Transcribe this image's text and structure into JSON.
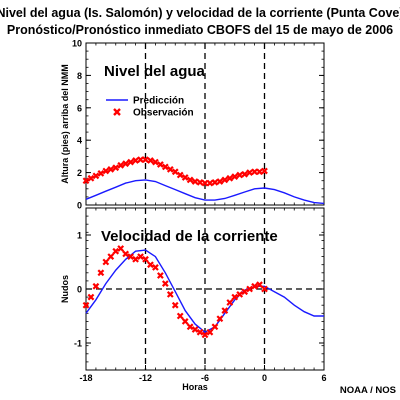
{
  "title_line1": "Nivel del agua (Is. Salomón) y velocidad de la corriente (Punta Cove)",
  "title_line2": "Pronóstico/Pronóstico inmediato CBOFS del 15 de mayo de 2006",
  "credit": "NOAA / NOS",
  "chart_data": [
    {
      "type": "line",
      "title": "Nivel del agua",
      "ylabel": "Altura (pies) arriba del NMM",
      "xlim": [
        -18,
        6
      ],
      "ylim": [
        0,
        10
      ],
      "yticks": [
        0,
        2,
        4,
        6,
        8,
        10
      ],
      "grid": false,
      "vlines": [
        -12,
        -6,
        0
      ],
      "legend_position": "upper-left",
      "series": [
        {
          "name": "Predicción",
          "style": "line",
          "color": "#1a1aff",
          "x": [
            -18,
            -17,
            -16,
            -15,
            -14,
            -13,
            -12,
            -11,
            -10,
            -9,
            -8,
            -7,
            -6,
            -5,
            -4,
            -3,
            -2,
            -1,
            0,
            1,
            2,
            3,
            4,
            5,
            6
          ],
          "y": [
            0.35,
            0.6,
            0.85,
            1.1,
            1.35,
            1.5,
            1.55,
            1.45,
            1.2,
            0.95,
            0.7,
            0.45,
            0.3,
            0.3,
            0.4,
            0.6,
            0.8,
            1.0,
            1.05,
            0.95,
            0.75,
            0.5,
            0.3,
            0.15,
            0.1
          ]
        },
        {
          "name": "Observación",
          "style": "marker",
          "color": "#ff0000",
          "x": [
            -18,
            -17.5,
            -17,
            -16.5,
            -16,
            -15.5,
            -15,
            -14.5,
            -14,
            -13.5,
            -13,
            -12.5,
            -12,
            -11.5,
            -11,
            -10.5,
            -10,
            -9.5,
            -9,
            -8.5,
            -8,
            -7.5,
            -7,
            -6.5,
            -6,
            -5.5,
            -5,
            -4.5,
            -4,
            -3.5,
            -3,
            -2.5,
            -2,
            -1.5,
            -1,
            -0.5,
            0
          ],
          "y": [
            1.5,
            1.65,
            1.8,
            1.95,
            2.1,
            2.2,
            2.3,
            2.45,
            2.55,
            2.65,
            2.75,
            2.8,
            2.8,
            2.75,
            2.65,
            2.5,
            2.35,
            2.2,
            2.05,
            1.85,
            1.7,
            1.55,
            1.45,
            1.4,
            1.35,
            1.35,
            1.4,
            1.45,
            1.55,
            1.65,
            1.75,
            1.85,
            1.9,
            2.0,
            2.05,
            2.05,
            2.1
          ]
        }
      ]
    },
    {
      "type": "line",
      "title": "Velocidad de la corriente",
      "ylabel": "Nudos",
      "xlabel": "Horas",
      "xlim": [
        -18,
        6
      ],
      "ylim": [
        -1.5,
        1.5
      ],
      "xticks": [
        -18,
        -12,
        -6,
        0,
        6
      ],
      "grid": false,
      "vlines": [
        -12,
        -6,
        0
      ],
      "hlines": [
        0
      ],
      "series": [
        {
          "name": "Predicción",
          "style": "line",
          "color": "#1a1aff",
          "x": [
            -18,
            -17,
            -16,
            -15,
            -14,
            -13,
            -12,
            -11,
            -10,
            -9,
            -8,
            -7,
            -6,
            -5,
            -4,
            -3,
            -2,
            -1,
            0,
            1,
            2,
            3,
            4,
            5,
            6
          ],
          "y": [
            -0.45,
            -0.2,
            0.1,
            0.35,
            0.55,
            0.7,
            0.72,
            0.6,
            0.3,
            -0.05,
            -0.4,
            -0.65,
            -0.8,
            -0.7,
            -0.45,
            -0.2,
            -0.02,
            0.05,
            0.05,
            -0.05,
            -0.15,
            -0.3,
            -0.42,
            -0.5,
            -0.5
          ]
        },
        {
          "name": "Observación",
          "style": "marker",
          "color": "#ff0000",
          "x": [
            -18,
            -17.5,
            -17,
            -16.5,
            -16,
            -15.5,
            -15,
            -14.5,
            -14,
            -13.5,
            -13,
            -12.5,
            -12,
            -11.5,
            -11,
            -10.5,
            -10,
            -9.5,
            -9,
            -8.5,
            -8,
            -7.5,
            -7,
            -6.5,
            -6,
            -5.5,
            -5,
            -4.5,
            -4,
            -3.5,
            -3,
            -2.5,
            -2,
            -1.5,
            -1,
            -0.5,
            0
          ],
          "y": [
            -0.3,
            -0.15,
            0.05,
            0.3,
            0.5,
            0.6,
            0.7,
            0.75,
            0.65,
            0.6,
            0.55,
            0.6,
            0.55,
            0.45,
            0.4,
            0.25,
            0.1,
            -0.1,
            -0.3,
            -0.5,
            -0.6,
            -0.7,
            -0.75,
            -0.8,
            -0.85,
            -0.8,
            -0.7,
            -0.55,
            -0.4,
            -0.25,
            -0.15,
            -0.1,
            -0.05,
            0.0,
            0.05,
            0.08,
            0.0
          ]
        }
      ]
    }
  ]
}
